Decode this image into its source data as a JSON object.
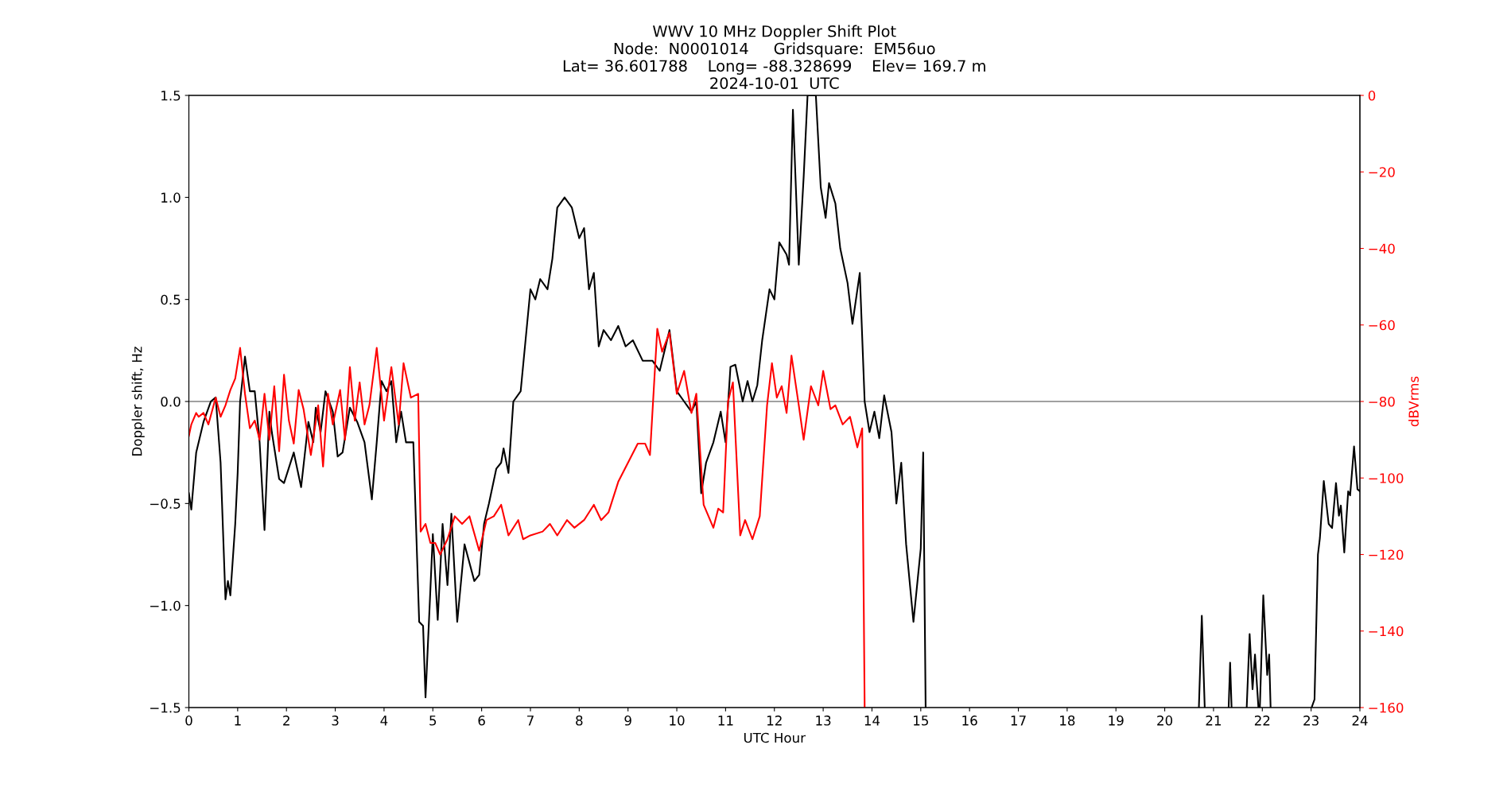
{
  "chart_data": {
    "type": "line",
    "title": "WWV 10 MHz Doppler Shift Plot\nNode:  N0001014     Gridsquare:  EM56uo\nLat= 36.601788    Long= -88.328699    Elev= 169.7 m\n2024-10-01  UTC",
    "xlabel": "UTC Hour",
    "ylabel": "Doppler shift, Hz",
    "y2label": "dBVrms",
    "xlim": [
      0,
      24
    ],
    "xticks": [
      0,
      1,
      2,
      3,
      4,
      5,
      6,
      7,
      8,
      9,
      10,
      11,
      12,
      13,
      14,
      15,
      16,
      17,
      18,
      19,
      20,
      21,
      22,
      23,
      24
    ],
    "ylim": [
      -1.5,
      1.5
    ],
    "yticks": [
      {
        "value": -1.5,
        "label": "−1.5"
      },
      {
        "value": -1.0,
        "label": "−1.0"
      },
      {
        "value": -0.5,
        "label": "−0.5"
      },
      {
        "value": 0,
        "label": "0.0"
      },
      {
        "value": 0.5,
        "label": "0.5"
      },
      {
        "value": 1.0,
        "label": "1.0"
      },
      {
        "value": 1.5,
        "label": "1.5"
      }
    ],
    "y2lim": [
      -160,
      0
    ],
    "y2ticks": [
      -160,
      -140,
      -120,
      -100,
      -80,
      -60,
      -40,
      -20,
      0
    ],
    "grid": false,
    "marker": "none",
    "line_style": "solid",
    "ref_lines": [
      {
        "axis": "y",
        "value": 0,
        "color": "#808080",
        "line_style": "solid"
      }
    ],
    "series": [
      {
        "color": "#000000",
        "axis": "y",
        "x": [
          0,
          0.05,
          0.15,
          0.3,
          0.45,
          0.55,
          0.65,
          0.75,
          0.8,
          0.85,
          0.95,
          1.0,
          1.05,
          1.15,
          1.25,
          1.35,
          1.45,
          1.55,
          1.65,
          1.7,
          1.85,
          1.95,
          2.15,
          2.3,
          2.45,
          2.55,
          2.6,
          2.7,
          2.8,
          2.95,
          3.05,
          3.15,
          3.3,
          3.45,
          3.6,
          3.75,
          3.85,
          3.95,
          4.05,
          4.15,
          4.25,
          4.35,
          4.45,
          4.6,
          4.72,
          4.8,
          4.85,
          4.95,
          5.0,
          5.1,
          5.2,
          5.3,
          5.38,
          5.5,
          5.65,
          5.85,
          5.95,
          6.05,
          6.15,
          6.3,
          6.4,
          6.45,
          6.55,
          6.65,
          6.8,
          6.9,
          7.0,
          7.1,
          7.2,
          7.35,
          7.45,
          7.55,
          7.7,
          7.85,
          8.0,
          8.1,
          8.2,
          8.3,
          8.4,
          8.5,
          8.65,
          8.8,
          8.95,
          9.1,
          9.3,
          9.5,
          9.65,
          9.85,
          10.0,
          10.15,
          10.3,
          10.4,
          10.5,
          10.6,
          10.75,
          10.9,
          11.0,
          11.1,
          11.2,
          11.35,
          11.45,
          11.55,
          11.65,
          11.75,
          11.9,
          12.0,
          12.1,
          12.25,
          12.3,
          12.38,
          12.5,
          12.6,
          12.68,
          12.85,
          12.95,
          13.05,
          13.12,
          13.25,
          13.35,
          13.5,
          13.6,
          13.75,
          13.85,
          13.95,
          14.05,
          14.15,
          14.25,
          14.4,
          14.5,
          14.6,
          14.7,
          14.85,
          15.0,
          15.05,
          15.1,
          15.2,
          20.7,
          20.76,
          20.82,
          21.0,
          21.31,
          21.34,
          21.37,
          21.5,
          21.68,
          21.74,
          21.8,
          21.85,
          21.92,
          21.95,
          22.02,
          22.1,
          22.14,
          22.17,
          22.5,
          23.01,
          23.07,
          23.14,
          23.18,
          23.26,
          23.36,
          23.43,
          23.51,
          23.57,
          23.61,
          23.68,
          23.76,
          23.8,
          23.88,
          23.95,
          24.0
        ],
        "values": [
          -0.45,
          -0.53,
          -0.25,
          -0.1,
          0,
          0.02,
          -0.3,
          -0.97,
          -0.88,
          -0.95,
          -0.6,
          -0.35,
          0,
          0.22,
          0.05,
          0.05,
          -0.2,
          -0.63,
          -0.05,
          -0.15,
          -0.38,
          -0.4,
          -0.25,
          -0.42,
          -0.1,
          -0.2,
          -0.03,
          -0.15,
          0.05,
          -0.05,
          -0.27,
          -0.25,
          -0.03,
          -0.1,
          -0.2,
          -0.48,
          -0.2,
          0.1,
          0.05,
          0.1,
          -0.2,
          -0.05,
          -0.2,
          -0.2,
          -1.08,
          -1.1,
          -1.45,
          -0.92,
          -0.65,
          -1.07,
          -0.6,
          -0.9,
          -0.55,
          -1.08,
          -0.7,
          -0.88,
          -0.85,
          -0.6,
          -0.5,
          -0.33,
          -0.3,
          -0.23,
          -0.35,
          0.0,
          0.05,
          0.3,
          0.55,
          0.5,
          0.6,
          0.55,
          0.7,
          0.95,
          1.0,
          0.95,
          0.8,
          0.85,
          0.55,
          0.63,
          0.27,
          0.35,
          0.3,
          0.37,
          0.27,
          0.3,
          0.2,
          0.2,
          0.15,
          0.35,
          0.05,
          0.0,
          -0.05,
          0.0,
          -0.45,
          -0.3,
          -0.2,
          -0.05,
          -0.2,
          0.17,
          0.18,
          0.0,
          0.1,
          0.0,
          0.08,
          0.3,
          0.55,
          0.5,
          0.78,
          0.72,
          0.67,
          1.43,
          0.67,
          1.1,
          1.5,
          1.5,
          1.05,
          0.9,
          1.07,
          0.97,
          0.75,
          0.58,
          0.38,
          0.63,
          0.0,
          -0.15,
          -0.05,
          -0.18,
          0.03,
          -0.15,
          -0.5,
          -0.3,
          -0.7,
          -1.08,
          -0.72,
          -0.25,
          -1.5,
          null,
          -1.5,
          -1.05,
          -1.5,
          null,
          -1.5,
          -1.28,
          -1.5,
          null,
          -1.5,
          -1.14,
          -1.41,
          -1.24,
          -1.5,
          -1.5,
          -0.95,
          -1.34,
          -1.24,
          -1.5,
          null,
          -1.5,
          -1.46,
          -0.75,
          -0.67,
          -0.39,
          -0.6,
          -0.62,
          -0.4,
          -0.56,
          -0.51,
          -0.74,
          -0.44,
          -0.46,
          -0.22,
          -0.43,
          -0.44
        ]
      },
      {
        "color": "#ff0000",
        "axis": "y2",
        "x": [
          0,
          0.05,
          0.15,
          0.2,
          0.3,
          0.4,
          0.55,
          0.65,
          0.75,
          0.85,
          0.95,
          1.05,
          1.15,
          1.25,
          1.35,
          1.45,
          1.55,
          1.65,
          1.75,
          1.85,
          1.95,
          2.05,
          2.15,
          2.25,
          2.35,
          2.5,
          2.65,
          2.75,
          2.85,
          2.95,
          3.1,
          3.2,
          3.3,
          3.4,
          3.5,
          3.6,
          3.7,
          3.85,
          4.0,
          4.15,
          4.3,
          4.4,
          4.55,
          4.7,
          4.75,
          4.85,
          4.95,
          5.05,
          5.15,
          5.3,
          5.45,
          5.6,
          5.75,
          5.95,
          6.1,
          6.25,
          6.4,
          6.55,
          6.75,
          6.85,
          7.0,
          7.25,
          7.4,
          7.55,
          7.75,
          7.9,
          8.1,
          8.3,
          8.45,
          8.6,
          8.8,
          9.0,
          9.2,
          9.35,
          9.45,
          9.6,
          9.7,
          9.85,
          10.0,
          10.15,
          10.3,
          10.4,
          10.55,
          10.75,
          10.85,
          10.95,
          11.05,
          11.15,
          11.3,
          11.4,
          11.55,
          11.7,
          11.85,
          11.95,
          12.05,
          12.15,
          12.25,
          12.35,
          12.5,
          12.6,
          12.75,
          12.9,
          13.0,
          13.15,
          13.25,
          13.4,
          13.55,
          13.7,
          13.8,
          13.85
        ],
        "values": [
          -89,
          -86,
          -83,
          -84,
          -83,
          -86,
          -79,
          -84,
          -81,
          -77,
          -74,
          -66,
          -78,
          -87,
          -85,
          -90,
          -78,
          -90,
          -76,
          -93,
          -73,
          -85,
          -91,
          -77,
          -82,
          -94,
          -81,
          -97,
          -78,
          -86,
          -77,
          -90,
          -71,
          -85,
          -75,
          -86,
          -81,
          -66,
          -85,
          -71,
          -86,
          -70,
          -79,
          -78,
          -114,
          -112,
          -117,
          -117,
          -120,
          -116,
          -110,
          -112,
          -110,
          -119,
          -111,
          -110,
          -107,
          -115,
          -111,
          -116,
          -115,
          -114,
          -112,
          -115,
          -111,
          -113,
          -111,
          -107,
          -111,
          -109,
          -101,
          -96,
          -91,
          -91,
          -94,
          -61,
          -67,
          -62,
          -78,
          -72,
          -83,
          -78,
          -107,
          -113,
          -108,
          -109,
          -80,
          -75,
          -115,
          -111,
          -116,
          -110,
          -81,
          -70,
          -79,
          -76,
          -83,
          -68,
          -81,
          -90,
          -76,
          -81,
          -72,
          -82,
          -81,
          -86,
          -84,
          -92,
          -87,
          -160
        ]
      }
    ]
  }
}
